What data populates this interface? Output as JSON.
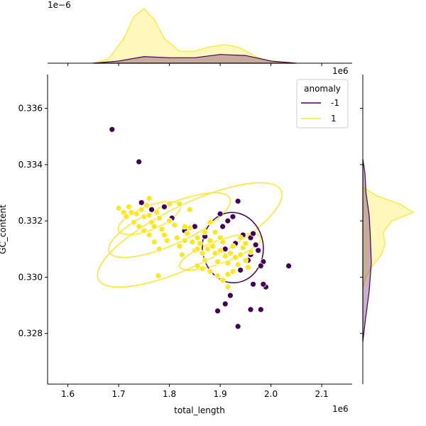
{
  "chart_data": {
    "type": "scatter",
    "xlabel": "total_length",
    "ylabel": "GC_content",
    "x_offset_label": "1e6",
    "y_offset_label": "",
    "top_marginal_offset_label": "1e−6",
    "right_marginal_offset_label": "1e6",
    "xlim": [
      1.56,
      2.16
    ],
    "ylim": [
      0.3262,
      0.3372
    ],
    "x_ticks": [
      "1.6",
      "1.7",
      "1.8",
      "1.9",
      "2.0",
      "2.1"
    ],
    "y_ticks": [
      "0.328",
      "0.330",
      "0.332",
      "0.334",
      "0.336"
    ],
    "grid": false,
    "legend": {
      "title": "anomaly",
      "placement": "top-right",
      "entries": [
        {
          "label": "-1",
          "color": "#440154"
        },
        {
          "label": "1",
          "color": "#fde725"
        }
      ]
    },
    "series": [
      {
        "name": "-1",
        "color": "#440154",
        "points": [
          [
            1.687,
            0.33525
          ],
          [
            1.74,
            0.3341
          ],
          [
            1.745,
            0.33265
          ],
          [
            1.765,
            0.3324
          ],
          [
            1.79,
            0.3325
          ],
          [
            1.805,
            0.3321
          ],
          [
            1.85,
            0.3318
          ],
          [
            1.87,
            0.33145
          ],
          [
            1.9,
            0.33225
          ],
          [
            1.905,
            0.3318
          ],
          [
            1.915,
            0.332
          ],
          [
            1.925,
            0.33215
          ],
          [
            1.935,
            0.3327
          ],
          [
            1.945,
            0.3315
          ],
          [
            1.96,
            0.3314
          ],
          [
            1.965,
            0.33155
          ],
          [
            1.97,
            0.33115
          ],
          [
            1.975,
            0.33095
          ],
          [
            1.955,
            0.3306
          ],
          [
            1.96,
            0.3308
          ],
          [
            1.94,
            0.33025
          ],
          [
            1.985,
            0.33055
          ],
          [
            1.98,
            0.3304
          ],
          [
            1.99,
            0.32965
          ],
          [
            1.985,
            0.32975
          ],
          [
            1.965,
            0.32975
          ],
          [
            1.96,
            0.32885
          ],
          [
            1.98,
            0.32885
          ],
          [
            1.935,
            0.32825
          ],
          [
            1.92,
            0.32935
          ],
          [
            1.91,
            0.32905
          ],
          [
            1.895,
            0.3288
          ],
          [
            2.035,
            0.3304
          ],
          [
            1.91,
            0.331
          ],
          [
            1.93,
            0.3312
          ],
          [
            1.83,
            0.33165
          ]
        ]
      },
      {
        "name": "1",
        "color": "#fde725",
        "points": [
          [
            1.7,
            0.33245
          ],
          [
            1.71,
            0.3323
          ],
          [
            1.715,
            0.33215
          ],
          [
            1.72,
            0.3325
          ],
          [
            1.725,
            0.3323
          ],
          [
            1.73,
            0.33195
          ],
          [
            1.735,
            0.33225
          ],
          [
            1.745,
            0.3324
          ],
          [
            1.75,
            0.33215
          ],
          [
            1.755,
            0.33255
          ],
          [
            1.76,
            0.3322
          ],
          [
            1.765,
            0.33195
          ],
          [
            1.77,
            0.3318
          ],
          [
            1.775,
            0.3323
          ],
          [
            1.78,
            0.3321
          ],
          [
            1.785,
            0.3317
          ],
          [
            1.79,
            0.3315
          ],
          [
            1.78,
            0.331
          ],
          [
            1.77,
            0.33125
          ],
          [
            1.76,
            0.3315
          ],
          [
            1.75,
            0.33165
          ],
          [
            1.74,
            0.3318
          ],
          [
            1.795,
            0.3313
          ],
          [
            1.8,
            0.332
          ],
          [
            1.81,
            0.33185
          ],
          [
            1.815,
            0.3314
          ],
          [
            1.82,
            0.3311
          ],
          [
            1.825,
            0.3308
          ],
          [
            1.83,
            0.3313
          ],
          [
            1.835,
            0.33155
          ],
          [
            1.84,
            0.33175
          ],
          [
            1.845,
            0.33125
          ],
          [
            1.85,
            0.33095
          ],
          [
            1.855,
            0.3314
          ],
          [
            1.86,
            0.3312
          ],
          [
            1.865,
            0.33085
          ],
          [
            1.87,
            0.3306
          ],
          [
            1.875,
            0.331
          ],
          [
            1.88,
            0.3313
          ],
          [
            1.885,
            0.3311
          ],
          [
            1.89,
            0.33085
          ],
          [
            1.895,
            0.33055
          ],
          [
            1.9,
            0.33095
          ],
          [
            1.905,
            0.33125
          ],
          [
            1.91,
            0.33075
          ],
          [
            1.915,
            0.3305
          ],
          [
            1.92,
            0.33085
          ],
          [
            1.925,
            0.3311
          ],
          [
            1.93,
            0.3307
          ],
          [
            1.935,
            0.33045
          ],
          [
            1.94,
            0.3308
          ],
          [
            1.945,
            0.33105
          ],
          [
            1.95,
            0.3306
          ],
          [
            1.955,
            0.33035
          ],
          [
            1.96,
            0.3309
          ],
          [
            1.855,
            0.3304
          ],
          [
            1.865,
            0.3303
          ],
          [
            1.88,
            0.3302
          ],
          [
            1.895,
            0.33005
          ],
          [
            1.905,
            0.3299
          ],
          [
            1.915,
            0.3301
          ],
          [
            1.925,
            0.3302
          ],
          [
            1.915,
            0.32965
          ],
          [
            1.778,
            0.33005
          ],
          [
            1.8,
            0.3326
          ],
          [
            1.82,
            0.3326
          ],
          [
            1.84,
            0.3324
          ],
          [
            1.88,
            0.33195
          ],
          [
            1.89,
            0.3316
          ],
          [
            1.76,
            0.3328
          ],
          [
            1.83,
            0.3318
          ],
          [
            1.87,
            0.3316
          ],
          [
            1.855,
            0.331
          ],
          [
            1.9,
            0.3314
          ],
          [
            1.95,
            0.3312
          ],
          [
            1.94,
            0.3314
          ]
        ]
      }
    ],
    "contours": [
      {
        "series": "1",
        "center": [
          1.84,
          0.3315
        ],
        "rx": 0.2,
        "ry": 0.00108,
        "angle": -26
      },
      {
        "series": "1",
        "center": [
          1.8,
          0.33185
        ],
        "rx": 0.13,
        "ry": 0.0007,
        "angle": -24
      },
      {
        "series": "1",
        "center": [
          1.76,
          0.3321
        ],
        "rx": 0.065,
        "ry": 0.00042,
        "angle": -22
      },
      {
        "series": "1",
        "center": [
          1.9,
          0.3309
        ],
        "rx": 0.085,
        "ry": 0.0004,
        "angle": -20
      },
      {
        "series": "-1",
        "center": [
          1.925,
          0.33105
        ],
        "rx": 0.06,
        "ry": 0.00125,
        "angle": -5
      }
    ],
    "marginal_top": {
      "series": [
        {
          "name": "-1",
          "color": "#440154",
          "x": [
            1.65,
            1.7,
            1.75,
            1.8,
            1.85,
            1.9,
            1.95,
            2.0,
            2.05
          ],
          "density": [
            0.0,
            0.04,
            0.12,
            0.1,
            0.1,
            0.16,
            0.14,
            0.04,
            0.0
          ]
        },
        {
          "name": "1",
          "color": "#fde725",
          "x": [
            1.65,
            1.68,
            1.71,
            1.73,
            1.75,
            1.77,
            1.79,
            1.82,
            1.85,
            1.88,
            1.91,
            1.94,
            1.97,
            2.0,
            2.04
          ],
          "density": [
            0.0,
            0.08,
            0.45,
            0.85,
            1.0,
            0.8,
            0.45,
            0.22,
            0.22,
            0.3,
            0.34,
            0.28,
            0.12,
            0.03,
            0.0
          ]
        }
      ]
    },
    "marginal_right": {
      "series": [
        {
          "name": "-1",
          "color": "#440154",
          "y": [
            0.3277,
            0.3285,
            0.3295,
            0.3305,
            0.3315,
            0.3322,
            0.333,
            0.3337,
            0.3342
          ],
          "density": [
            0.0,
            0.05,
            0.12,
            0.16,
            0.14,
            0.12,
            0.06,
            0.04,
            0.0
          ]
        },
        {
          "name": "1",
          "color": "#fde725",
          "y": [
            0.3296,
            0.33,
            0.3304,
            0.3308,
            0.3312,
            0.3316,
            0.332,
            0.3323,
            0.3326,
            0.3329,
            0.3332
          ],
          "density": [
            0.0,
            0.06,
            0.18,
            0.35,
            0.42,
            0.38,
            0.55,
            0.95,
            0.7,
            0.25,
            0.0
          ]
        }
      ]
    }
  }
}
